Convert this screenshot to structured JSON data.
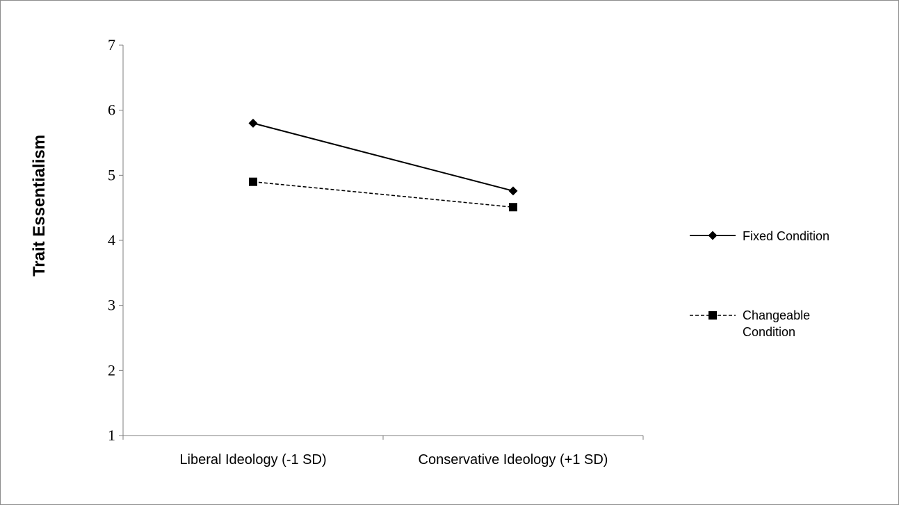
{
  "chart_data": {
    "type": "line",
    "title": "",
    "xlabel": "",
    "ylabel": "Trait Essentialism",
    "categories": [
      "Liberal Ideology (-1 SD)",
      "Conservative Ideology (+1 SD)"
    ],
    "ylim": [
      1,
      7
    ],
    "yticks": [
      "1",
      "2",
      "3",
      "4",
      "5",
      "6",
      "7"
    ],
    "grid": false,
    "legend_position": "right",
    "series": [
      {
        "name": "Fixed Condition",
        "values": [
          5.8,
          4.76
        ],
        "marker": "diamond",
        "line_style": "solid",
        "legend_lines": [
          "Fixed Condition"
        ]
      },
      {
        "name": "Changeable Condition",
        "values": [
          4.9,
          4.51
        ],
        "marker": "square",
        "line_style": "dashed",
        "legend_lines": [
          "Changeable",
          "Condition"
        ]
      }
    ],
    "colors": {
      "line": "#000000",
      "axis": "#7f7f7f",
      "frame": "#8c8c8c"
    }
  }
}
